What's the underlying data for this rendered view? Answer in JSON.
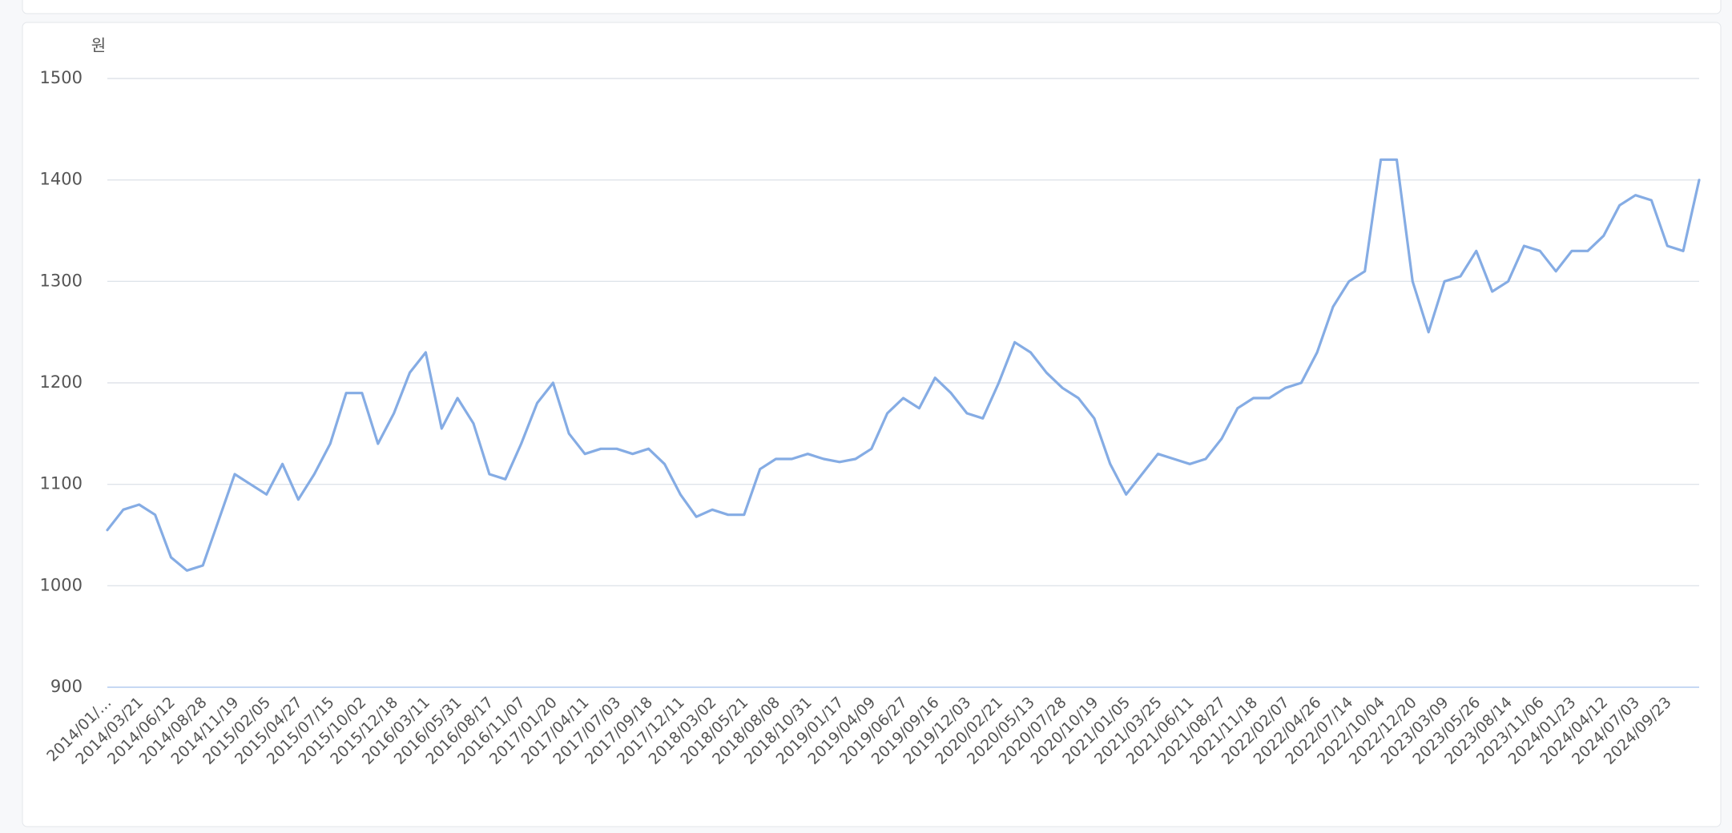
{
  "chart_data": {
    "type": "line",
    "y_unit": "원",
    "color": "#85ace4",
    "grid": true,
    "ylim": [
      900,
      1500
    ],
    "yticks": [
      900,
      1000,
      1100,
      1200,
      1300,
      1400,
      1500
    ],
    "categories": [
      "2014/01/…",
      null,
      "2014/03/21",
      null,
      "2014/06/12",
      null,
      "2014/08/28",
      null,
      "2014/11/19",
      null,
      "2015/02/05",
      null,
      "2015/04/27",
      null,
      "2015/07/15",
      null,
      "2015/10/02",
      null,
      "2015/12/18",
      null,
      "2016/03/11",
      null,
      "2016/05/31",
      null,
      "2016/08/17",
      null,
      "2016/11/07",
      null,
      "2017/01/20",
      null,
      "2017/04/11",
      null,
      "2017/07/03",
      null,
      "2017/09/18",
      null,
      "2017/12/11",
      null,
      "2018/03/02",
      null,
      "2018/05/21",
      null,
      "2018/08/08",
      null,
      "2018/10/31",
      null,
      "2019/01/17",
      null,
      "2019/04/09",
      null,
      "2019/06/27",
      null,
      "2019/09/16",
      null,
      "2019/12/03",
      null,
      "2020/02/21",
      null,
      "2020/05/13",
      null,
      "2020/07/28",
      null,
      "2020/10/19",
      null,
      "2021/01/05",
      null,
      "2021/03/25",
      null,
      "2021/06/11",
      null,
      "2021/08/27",
      null,
      "2021/11/18",
      null,
      "2022/02/07",
      null,
      "2022/04/26",
      null,
      "2022/07/14",
      null,
      "2022/10/04",
      null,
      "2022/12/20",
      null,
      "2023/03/09",
      null,
      "2023/05/26",
      null,
      "2023/08/14",
      null,
      "2023/11/06",
      null,
      "2024/01/23",
      null,
      "2024/04/12",
      null,
      "2024/07/03",
      null,
      "2024/09/23",
      null,
      null
    ],
    "values": [
      1055,
      1075,
      1080,
      1070,
      1028,
      1015,
      1020,
      1065,
      1110,
      1100,
      1090,
      1120,
      1085,
      1110,
      1140,
      1190,
      1190,
      1140,
      1170,
      1210,
      1230,
      1155,
      1185,
      1160,
      1110,
      1105,
      1140,
      1180,
      1200,
      1150,
      1130,
      1135,
      1135,
      1130,
      1135,
      1120,
      1090,
      1068,
      1075,
      1070,
      1070,
      1115,
      1125,
      1125,
      1130,
      1125,
      1122,
      1125,
      1135,
      1170,
      1185,
      1175,
      1205,
      1190,
      1170,
      1165,
      1200,
      1240,
      1230,
      1210,
      1195,
      1185,
      1165,
      1120,
      1090,
      1110,
      1130,
      1125,
      1120,
      1125,
      1145,
      1175,
      1185,
      1185,
      1195,
      1200,
      1230,
      1275,
      1300,
      1310,
      1420,
      1420,
      1300,
      1250,
      1300,
      1305,
      1330,
      1290,
      1300,
      1335,
      1330,
      1310,
      1330,
      1330,
      1345,
      1375,
      1385,
      1380,
      1335,
      1330,
      1400
    ]
  }
}
